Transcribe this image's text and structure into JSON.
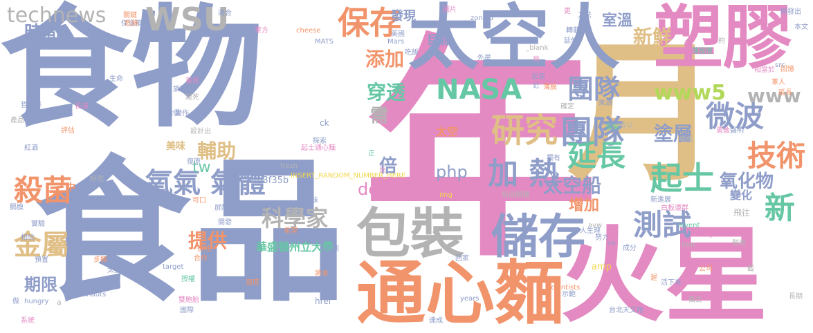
{
  "colors": {
    "blue": "#8f9dc9",
    "pink": "#e48ac3",
    "tan": "#e0bf86",
    "orange": "#f2946b",
    "green": "#66c7a4",
    "gray": "#b3b3b3",
    "lime": "#b2d85a",
    "yellow": "#f2d64b"
  },
  "words": [
    {
      "text": "食物",
      "color": "blue"
    },
    {
      "text": "食品",
      "color": "blue"
    },
    {
      "text": "年",
      "color": "pink"
    },
    {
      "text": "月",
      "color": "tan"
    },
    {
      "text": "火星",
      "color": "pink"
    },
    {
      "text": "塑膠",
      "color": "pink"
    },
    {
      "text": "太空人",
      "color": "blue"
    },
    {
      "text": "通心麵",
      "color": "orange"
    },
    {
      "text": "包裝",
      "color": "gray"
    },
    {
      "text": "儲存",
      "color": "blue"
    },
    {
      "text": "NASA",
      "color": "green"
    },
    {
      "text": "研究",
      "color": "tan"
    },
    {
      "text": "團隊",
      "color": "blue"
    },
    {
      "text": "團隊",
      "color": "blue"
    },
    {
      "text": "WSU",
      "color": "gray"
    },
    {
      "text": "technews",
      "color": "gray"
    },
    {
      "text": "保存",
      "color": "orange"
    },
    {
      "text": "微波",
      "color": "blue"
    },
    {
      "text": "技術",
      "color": "orange"
    },
    {
      "text": "延長",
      "color": "green"
    },
    {
      "text": "起士",
      "color": "green"
    },
    {
      "text": "加 熱",
      "color": "blue"
    },
    {
      "text": "殺菌",
      "color": "orange"
    },
    {
      "text": "金屬",
      "color": "tan"
    },
    {
      "text": "氧氣 氣體",
      "color": "blue"
    },
    {
      "text": "科學家",
      "color": "gray"
    },
    {
      "text": "測試",
      "color": "blue"
    },
    {
      "text": "新",
      "color": "green"
    },
    {
      "text": "太空船",
      "color": "blue"
    },
    {
      "text": "氧化物",
      "color": "blue"
    },
    {
      "text": "www5",
      "color": "lime"
    },
    {
      "text": "www",
      "color": "gray"
    },
    {
      "text": "時間",
      "color": "blue"
    },
    {
      "text": "添加",
      "color": "orange"
    },
    {
      "text": "穿透",
      "color": "green"
    },
    {
      "text": "新鮮",
      "color": "tan"
    },
    {
      "text": "室溫",
      "color": "blue"
    },
    {
      "text": "發現",
      "color": "blue"
    },
    {
      "text": "目標",
      "color": "blue"
    },
    {
      "text": "塗層",
      "color": "blue"
    },
    {
      "text": "輔助",
      "color": "tan"
    },
    {
      "text": "需",
      "color": "gray"
    },
    {
      "text": "倍",
      "color": "blue"
    },
    {
      "text": "php",
      "color": "blue"
    },
    {
      "text": "delivery",
      "color": "pink"
    },
    {
      "text": "tw",
      "color": "green"
    },
    {
      "text": "增加",
      "color": "orange"
    },
    {
      "text": "提供",
      "color": "orange"
    },
    {
      "text": "期限",
      "color": "blue"
    },
    {
      "text": "華盛頓州立大學",
      "color": "green"
    },
    {
      "text": "變化",
      "color": "blue"
    },
    {
      "text": "美味",
      "color": "tan"
    },
    {
      "text": "太空",
      "color": "orange"
    },
    {
      "text": "a4b3f35b",
      "color": "blue"
    },
    {
      "text": "INSERT_RANDOM_NUMBER_HERE",
      "color": "yellow"
    },
    {
      "text": "中",
      "color": "orange"
    },
    {
      "text": "Mars",
      "color": "blue"
    },
    {
      "text": "MATS",
      "color": "blue"
    },
    {
      "text": "cheese",
      "color": "orange"
    },
    {
      "text": "zoneid",
      "color": "blue"
    },
    {
      "text": "_blank",
      "color": "gray"
    },
    {
      "text": "src",
      "color": "blue"
    },
    {
      "text": "ck",
      "color": "blue"
    },
    {
      "text": "fresh",
      "color": "gray"
    },
    {
      "text": "img",
      "color": "yellow"
    },
    {
      "text": "amp",
      "color": "yellow"
    },
    {
      "text": "href",
      "color": "blue"
    },
    {
      "text": "years",
      "color": "blue"
    },
    {
      "text": "Scientists",
      "color": "orange"
    },
    {
      "text": "astronauts",
      "color": "blue"
    },
    {
      "text": "hungry",
      "color": "blue"
    },
    {
      "text": "target",
      "color": "blue"
    },
    {
      "text": "stays",
      "color": "pink"
    },
    {
      "text": "invent",
      "color": "green"
    },
    {
      "text": "mac",
      "color": "gray"
    },
    {
      "text": "avw",
      "color": "gray"
    },
    {
      "text": "cb",
      "color": "blue"
    },
    {
      "text": "台北天文館",
      "color": "blue"
    },
    {
      "text": "太空站",
      "color": "blue"
    },
    {
      "text": "人生理",
      "color": "blue"
    },
    {
      "text": "新進展",
      "color": "blue"
    },
    {
      "text": "白板運群",
      "color": "pink"
    },
    {
      "text": "生命",
      "color": "blue"
    },
    {
      "text": "肌肉",
      "color": "blue"
    },
    {
      "text": "產品",
      "color": "gray"
    },
    {
      "text": "紅酒",
      "color": "blue"
    },
    {
      "text": "實驗",
      "color": "blue"
    },
    {
      "text": "系統",
      "color": "pink"
    },
    {
      "text": "達成",
      "color": "blue"
    },
    {
      "text": "回家",
      "color": "blue"
    },
    {
      "text": "消毒",
      "color": "blue"
    },
    {
      "text": "將來",
      "color": "orange"
    },
    {
      "text": "找到",
      "color": "blue"
    },
    {
      "text": "合作",
      "color": "orange"
    },
    {
      "text": "授權",
      "color": "green"
    },
    {
      "text": "口味",
      "color": "blue"
    },
    {
      "text": "屏障",
      "color": "blue"
    },
    {
      "text": "可口",
      "color": "orange"
    },
    {
      "text": "成分",
      "color": "blue"
    },
    {
      "text": "飛往",
      "color": "gray"
    },
    {
      "text": "公司",
      "color": "orange"
    },
    {
      "text": "長期",
      "color": "gray"
    },
    {
      "text": "活下來",
      "color": "blue"
    },
    {
      "text": "攝氏",
      "color": "gray"
    },
    {
      "text": "晚餐",
      "color": "gray"
    },
    {
      "text": "相當於",
      "color": "pink"
    },
    {
      "text": "延伸",
      "color": "blue"
    },
    {
      "text": "薄膜層",
      "color": "green"
    },
    {
      "text": "本文",
      "color": "blue"
    },
    {
      "text": "開發出",
      "color": "blue"
    },
    {
      "text": "美國",
      "color": "blue"
    },
    {
      "text": "方法",
      "color": "blue"
    },
    {
      "text": "軍方",
      "color": "pink"
    },
    {
      "text": "保溫箱",
      "color": "blue"
    },
    {
      "text": "玻璃",
      "color": "blue"
    },
    {
      "text": "適合",
      "color": "blue"
    },
    {
      "text": "圖片",
      "color": "pink"
    },
    {
      "text": "近",
      "color": "blue"
    },
    {
      "text": "加速",
      "color": "blue"
    },
    {
      "text": "薄膜",
      "color": "orange"
    },
    {
      "text": "指出",
      "color": "gray"
    },
    {
      "text": "閱讀",
      "color": "gray"
    },
    {
      "text": "希望",
      "color": "orange"
    },
    {
      "text": "好吃",
      "color": "gray"
    },
    {
      "text": "速度",
      "color": "orange"
    },
    {
      "text": "國際",
      "color": "blue"
    },
    {
      "text": "雙胞胎",
      "color": "pink"
    },
    {
      "text": "步驟",
      "color": "orange"
    },
    {
      "text": "複製",
      "color": "green"
    },
    {
      "text": "確定",
      "color": "gray"
    },
    {
      "text": "勇敢",
      "color": "pink"
    },
    {
      "text": "聲明",
      "color": "blue"
    },
    {
      "text": "努力",
      "color": "blue"
    },
    {
      "text": "危險",
      "color": "orange"
    },
    {
      "text": "外星",
      "color": "blue"
    },
    {
      "text": "首席",
      "color": "pink"
    },
    {
      "text": "殺死",
      "color": "gray"
    },
    {
      "text": "旅程",
      "color": "blue"
    },
    {
      "text": "評估",
      "color": "orange"
    },
    {
      "text": "長達",
      "color": "pink"
    },
    {
      "text": "哲遠幕",
      "color": "blue"
    },
    {
      "text": "設計出",
      "color": "gray"
    },
    {
      "text": "復原",
      "color": "blue"
    },
    {
      "text": "備俱",
      "color": "blue"
    },
    {
      "text": "變作",
      "color": "blue"
    },
    {
      "text": "來源",
      "color": "blue"
    },
    {
      "text": "約",
      "color": "gray"
    },
    {
      "text": "吃飯",
      "color": "blue"
    },
    {
      "text": "轉載",
      "color": "blue"
    },
    {
      "text": "軍人",
      "color": "orange"
    },
    {
      "text": "回憶",
      "color": "orange"
    },
    {
      "text": "獨有",
      "color": "blue"
    },
    {
      "text": "起士通心麵",
      "color": "pink"
    },
    {
      "text": "探索",
      "color": "blue"
    },
    {
      "text": "正",
      "color": "green"
    },
    {
      "text": "懸念",
      "color": "pink"
    },
    {
      "text": "關鍵",
      "color": "orange"
    },
    {
      "text": "示範",
      "color": "blue"
    },
    {
      "text": "遲",
      "color": "orange"
    },
    {
      "text": "截",
      "color": "gray"
    },
    {
      "text": "得以",
      "color": "gray"
    },
    {
      "text": "延長",
      "color": "orange"
    },
    {
      "text": "更",
      "color": "pink"
    },
    {
      "text": "預置",
      "color": "blue"
    },
    {
      "text": "相信",
      "color": "blue"
    },
    {
      "text": "做",
      "color": "blue"
    },
    {
      "text": "a",
      "color": "gray"
    },
    {
      "text": "開發",
      "color": "blue"
    },
    {
      "text": "膈膜",
      "color": "blue"
    },
    {
      "text": "反",
      "color": "pink"
    },
    {
      "text": "擔任",
      "color": "orange"
    },
    {
      "text": "局",
      "color": "pink"
    },
    {
      "text": "幫助",
      "color": "gray"
    }
  ]
}
